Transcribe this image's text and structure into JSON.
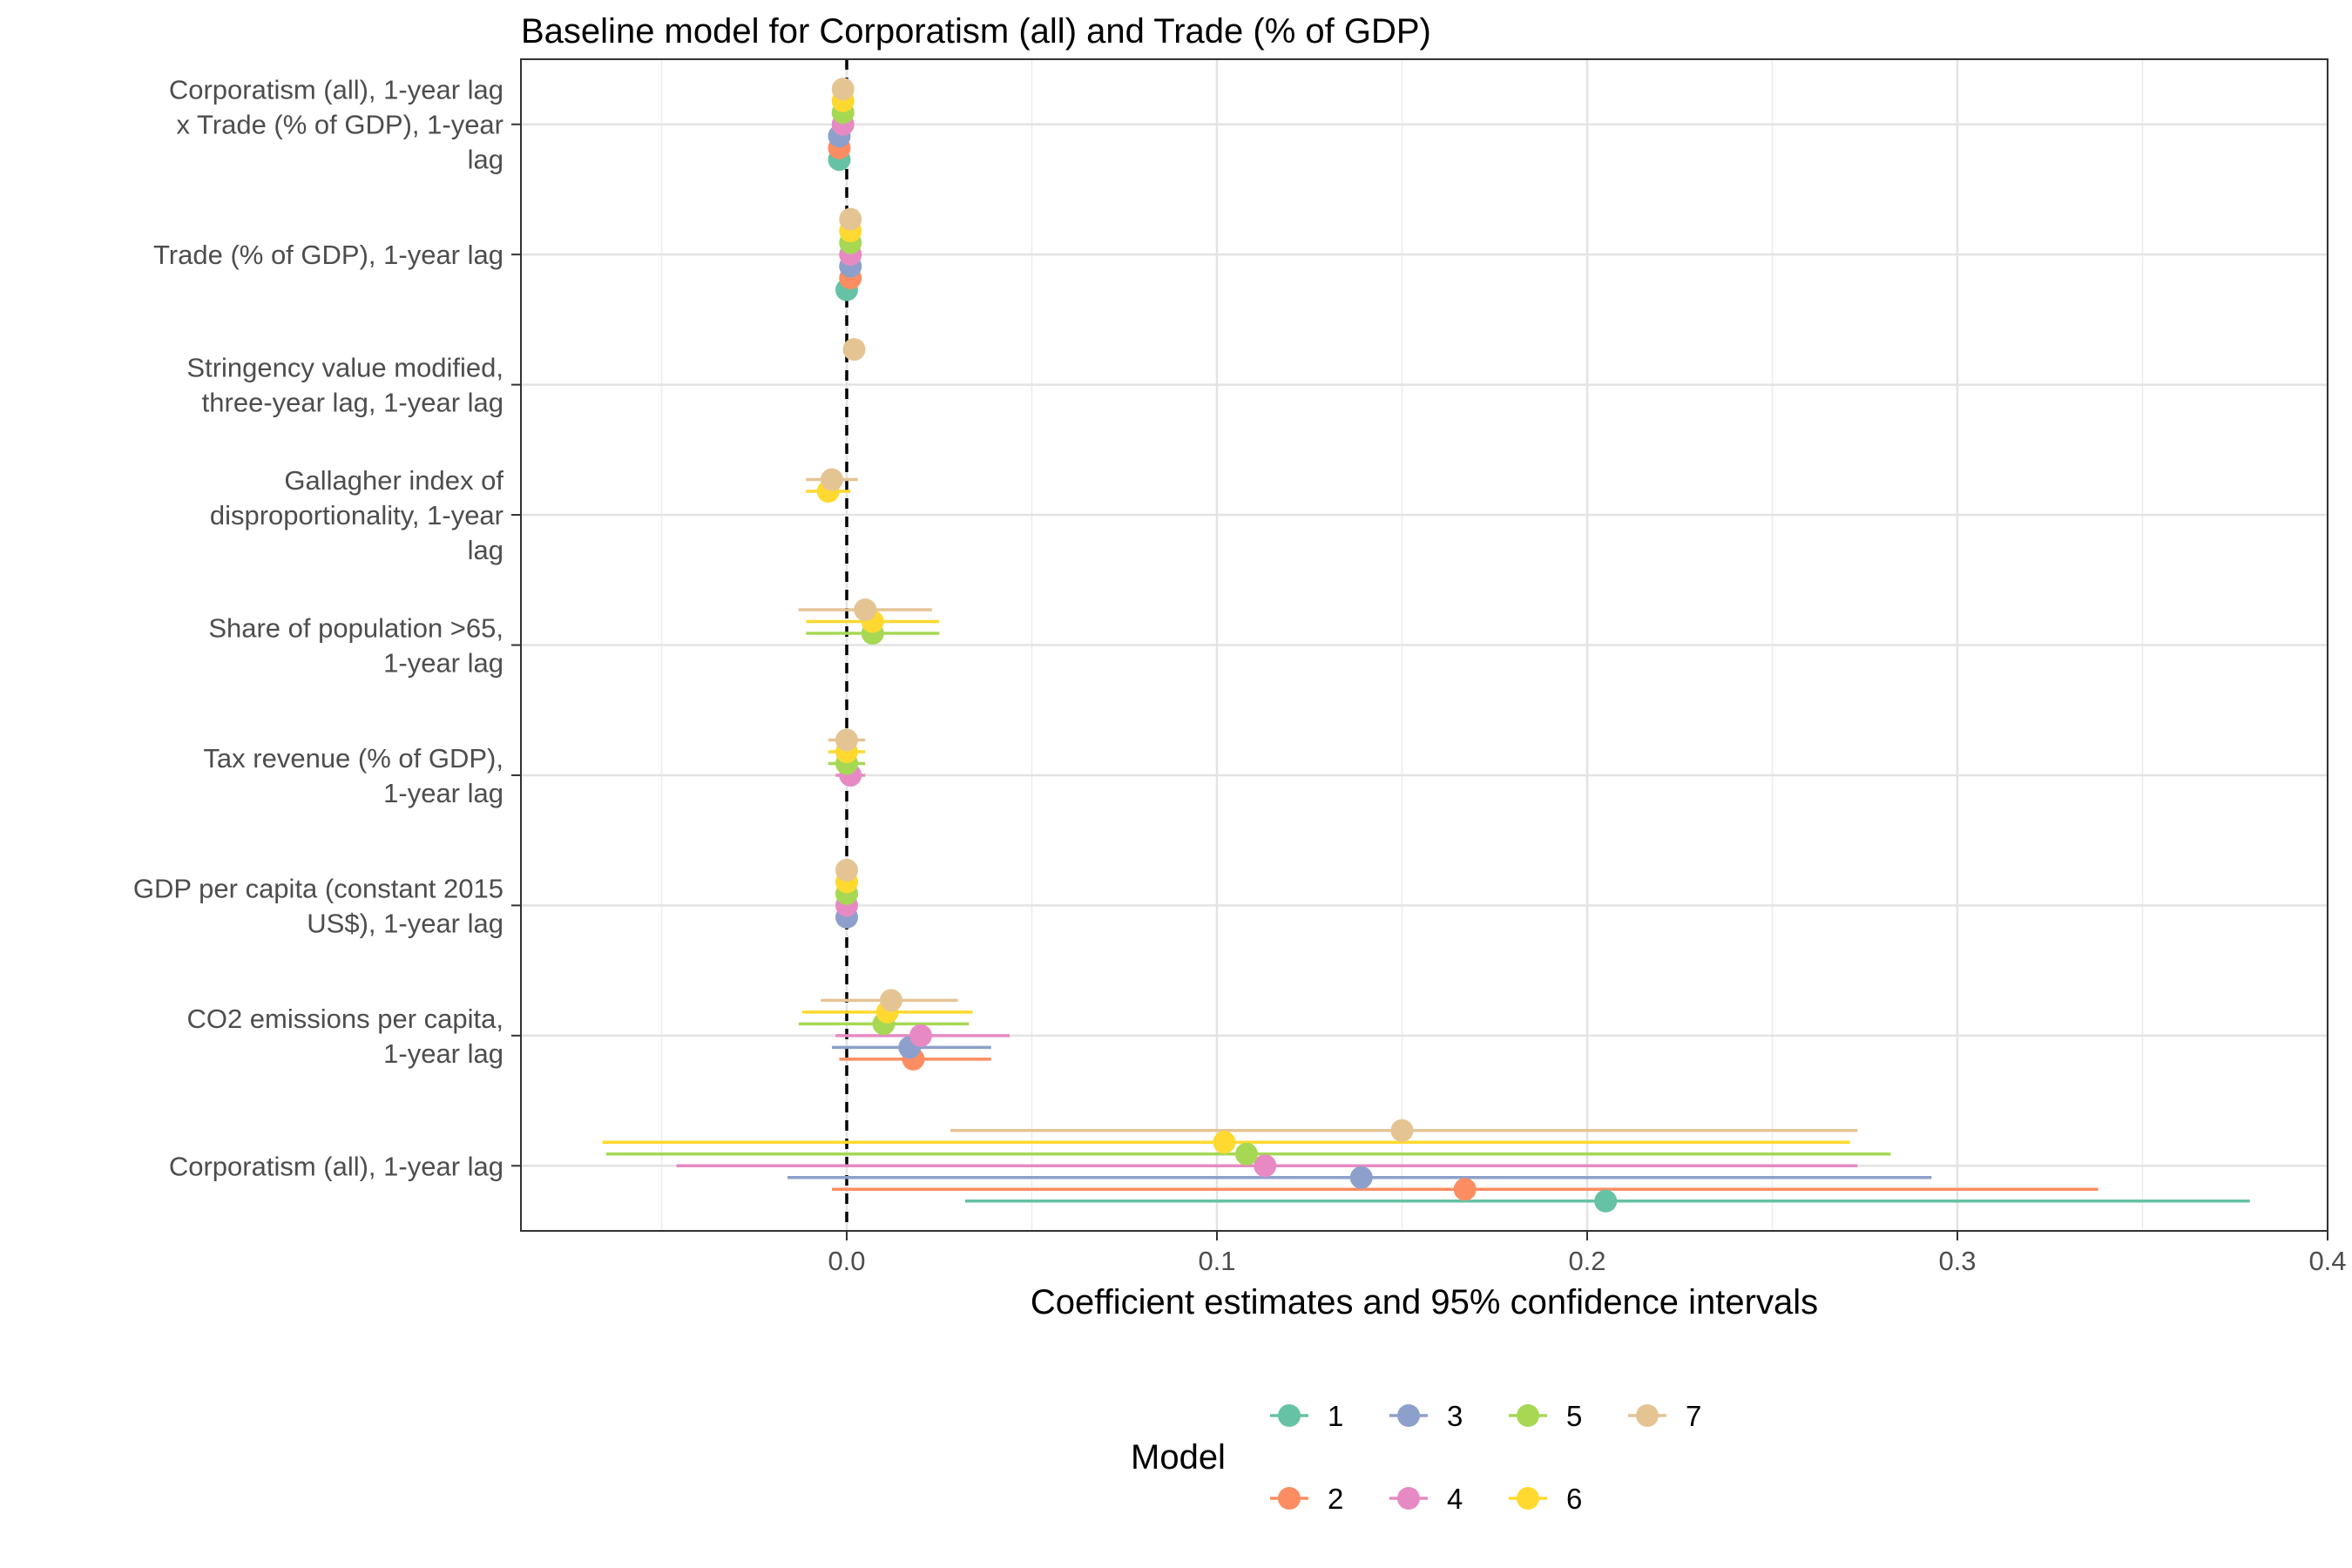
{
  "chart_data": {
    "type": "coefficient-plot",
    "title": "Baseline model for Corporatism (all) and Trade (% of GDP)",
    "xlabel": "Coefficient estimates and 95% confidence intervals",
    "ylabel": "",
    "xlim": [
      -0.088,
      0.4
    ],
    "x_ticks": [
      "0.0",
      "0.1",
      "0.2",
      "0.3",
      "0.4"
    ],
    "x_tick_values": [
      0.0,
      0.1,
      0.2,
      0.3,
      0.4
    ],
    "reference_line": 0,
    "grid": true,
    "legend_title": "Model",
    "legend_position": "bottom",
    "categories": [
      "Corporatism (all), 1-year lag\nx Trade (% of GDP), 1-year\nlag",
      "Trade (% of GDP), 1-year lag",
      "Stringency value modified,\nthree-year lag, 1-year lag",
      "Gallagher index of\ndisproportionality, 1-year\nlag",
      "Share of population >65,\n1-year lag",
      "Tax revenue (% of GDP),\n1-year lag",
      "GDP per capita (constant 2015\nUS$), 1-year lag",
      "CO2 emissions per capita,\n1-year lag",
      "Corporatism (all), 1-year lag"
    ],
    "series": [
      {
        "name": "1",
        "color": "#66C2A5",
        "points": [
          {
            "category": 0,
            "estimate": -0.002,
            "lower": -0.003,
            "upper": -0.001
          },
          {
            "category": 1,
            "estimate": 0.0,
            "lower": -0.001,
            "upper": 0.001
          },
          {
            "category": 8,
            "estimate": 0.205,
            "lower": 0.032,
            "upper": 0.379
          }
        ]
      },
      {
        "name": "2",
        "color": "#FC8D62",
        "points": [
          {
            "category": 0,
            "estimate": -0.002,
            "lower": -0.003,
            "upper": -0.001
          },
          {
            "category": 1,
            "estimate": 0.001,
            "lower": 0.0,
            "upper": 0.002
          },
          {
            "category": 7,
            "estimate": 0.018,
            "lower": -0.002,
            "upper": 0.039
          },
          {
            "category": 8,
            "estimate": 0.167,
            "lower": -0.004,
            "upper": 0.338
          }
        ]
      },
      {
        "name": "3",
        "color": "#8DA0CB",
        "points": [
          {
            "category": 0,
            "estimate": -0.002,
            "lower": -0.003,
            "upper": -0.001
          },
          {
            "category": 1,
            "estimate": 0.001,
            "lower": 0.0,
            "upper": 0.002
          },
          {
            "category": 6,
            "estimate": 0.0,
            "lower": -0.001,
            "upper": 0.001
          },
          {
            "category": 7,
            "estimate": 0.017,
            "lower": -0.004,
            "upper": 0.039
          },
          {
            "category": 8,
            "estimate": 0.139,
            "lower": -0.016,
            "upper": 0.293
          }
        ]
      },
      {
        "name": "4",
        "color": "#E78AC3",
        "points": [
          {
            "category": 0,
            "estimate": -0.001,
            "lower": -0.002,
            "upper": 0.0
          },
          {
            "category": 1,
            "estimate": 0.001,
            "lower": 0.0,
            "upper": 0.002
          },
          {
            "category": 5,
            "estimate": 0.001,
            "lower": -0.003,
            "upper": 0.005
          },
          {
            "category": 6,
            "estimate": 0.0,
            "lower": -0.001,
            "upper": 0.001
          },
          {
            "category": 7,
            "estimate": 0.02,
            "lower": -0.003,
            "upper": 0.044
          },
          {
            "category": 8,
            "estimate": 0.113,
            "lower": -0.046,
            "upper": 0.273
          }
        ]
      },
      {
        "name": "5",
        "color": "#A6D854",
        "points": [
          {
            "category": 0,
            "estimate": -0.001,
            "lower": -0.002,
            "upper": 0.0
          },
          {
            "category": 1,
            "estimate": 0.001,
            "lower": 0.0,
            "upper": 0.002
          },
          {
            "category": 4,
            "estimate": 0.007,
            "lower": -0.011,
            "upper": 0.025
          },
          {
            "category": 5,
            "estimate": 0.0,
            "lower": -0.005,
            "upper": 0.005
          },
          {
            "category": 6,
            "estimate": 0.0,
            "lower": -0.001,
            "upper": 0.001
          },
          {
            "category": 7,
            "estimate": 0.01,
            "lower": -0.013,
            "upper": 0.033
          },
          {
            "category": 8,
            "estimate": 0.108,
            "lower": -0.065,
            "upper": 0.282
          }
        ]
      },
      {
        "name": "6",
        "color": "#FFD92F",
        "points": [
          {
            "category": 0,
            "estimate": -0.001,
            "lower": -0.002,
            "upper": 0.0
          },
          {
            "category": 1,
            "estimate": 0.001,
            "lower": 0.0,
            "upper": 0.002
          },
          {
            "category": 3,
            "estimate": -0.005,
            "lower": -0.011,
            "upper": 0.001
          },
          {
            "category": 4,
            "estimate": 0.007,
            "lower": -0.011,
            "upper": 0.025
          },
          {
            "category": 5,
            "estimate": 0.0,
            "lower": -0.005,
            "upper": 0.005
          },
          {
            "category": 6,
            "estimate": 0.0,
            "lower": -0.001,
            "upper": 0.001
          },
          {
            "category": 7,
            "estimate": 0.011,
            "lower": -0.012,
            "upper": 0.034
          },
          {
            "category": 8,
            "estimate": 0.102,
            "lower": -0.066,
            "upper": 0.271
          }
        ]
      },
      {
        "name": "7",
        "color": "#E5C494",
        "points": [
          {
            "category": 0,
            "estimate": -0.001,
            "lower": -0.002,
            "upper": 0.0
          },
          {
            "category": 1,
            "estimate": 0.001,
            "lower": 0.0,
            "upper": 0.002
          },
          {
            "category": 2,
            "estimate": 0.002,
            "lower": 0.001,
            "upper": 0.003
          },
          {
            "category": 3,
            "estimate": -0.004,
            "lower": -0.011,
            "upper": 0.003
          },
          {
            "category": 4,
            "estimate": 0.005,
            "lower": -0.013,
            "upper": 0.023
          },
          {
            "category": 5,
            "estimate": 0.0,
            "lower": -0.005,
            "upper": 0.005
          },
          {
            "category": 6,
            "estimate": 0.0,
            "lower": -0.001,
            "upper": 0.001
          },
          {
            "category": 7,
            "estimate": 0.012,
            "lower": -0.007,
            "upper": 0.03
          },
          {
            "category": 8,
            "estimate": 0.15,
            "lower": 0.028,
            "upper": 0.273
          }
        ]
      }
    ]
  }
}
